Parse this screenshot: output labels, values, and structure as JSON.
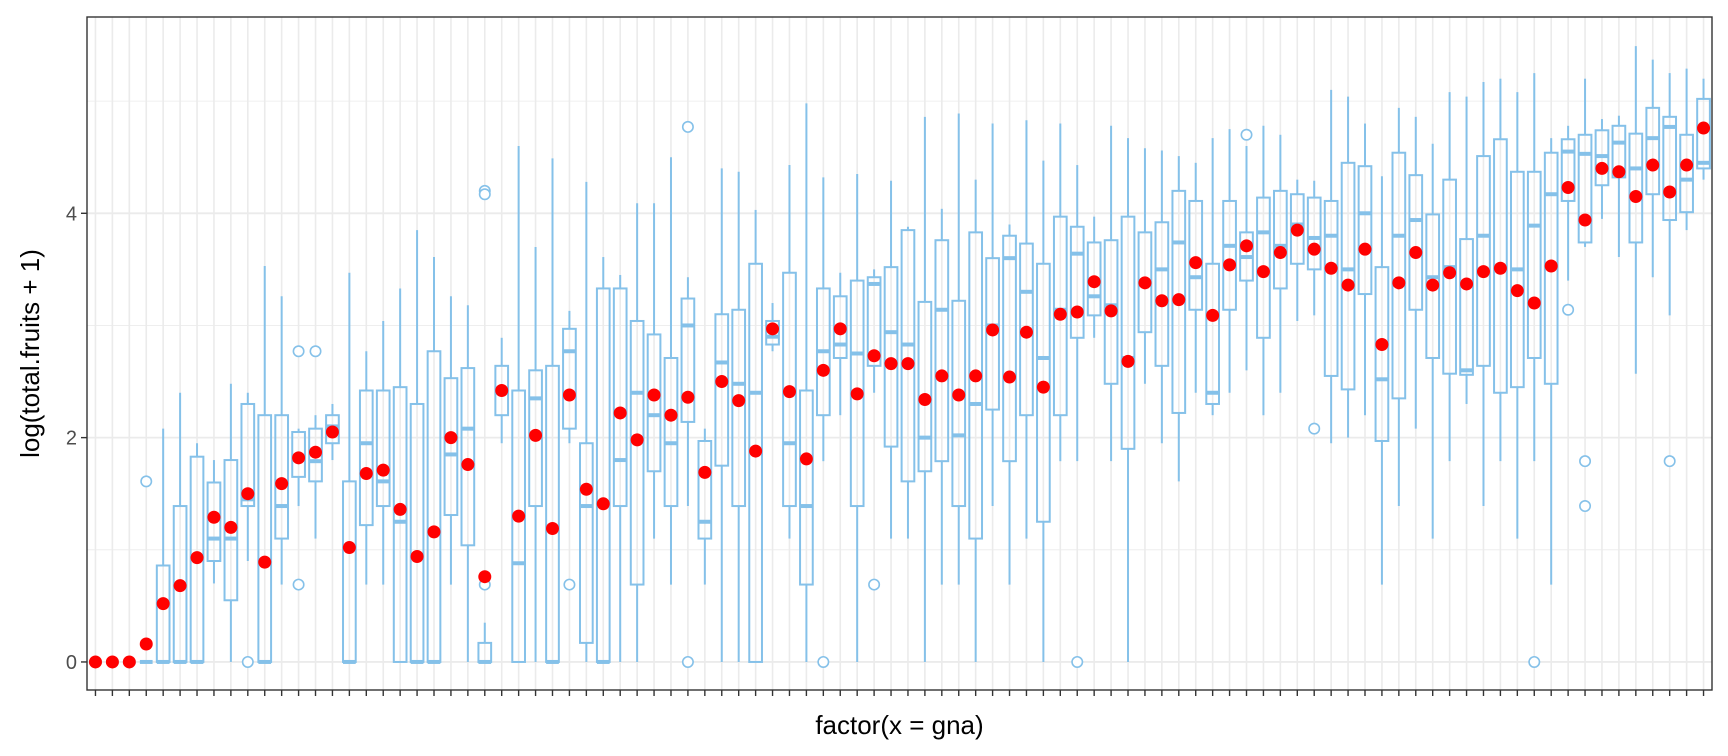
{
  "chart_data": {
    "type": "box",
    "title": "",
    "xlabel": "factor(x = gna)",
    "ylabel": "log(total.fruits + 1)",
    "ylim": [
      -0.25,
      5.75
    ],
    "yticks": [
      0,
      2,
      4
    ],
    "ytick_labels": [
      "0",
      "2",
      "4"
    ],
    "x_tick_labels_shown": false,
    "grid": true,
    "theme": "bw",
    "colors": {
      "box": "#85c1e9",
      "mean": "#ff0000",
      "grid": "#ebebeb",
      "panel_border": "#333333"
    },
    "groups": [
      {
        "q1": 0,
        "median": 0,
        "q3": 0,
        "lo": 0,
        "hi": 0,
        "mean": 0,
        "outliers": []
      },
      {
        "q1": 0,
        "median": 0,
        "q3": 0,
        "lo": 0,
        "hi": 0,
        "mean": 0,
        "outliers": []
      },
      {
        "q1": 0,
        "median": 0,
        "q3": 0,
        "lo": 0,
        "hi": 0,
        "mean": 0,
        "outliers": []
      },
      {
        "q1": 0,
        "median": 0,
        "q3": 0,
        "lo": 0,
        "hi": 0,
        "mean": 0.16,
        "outliers": [
          1.61
        ]
      },
      {
        "q1": 0,
        "median": 0,
        "q3": 0.86,
        "lo": 0,
        "hi": 2.08,
        "mean": 0.52,
        "outliers": []
      },
      {
        "q1": 0,
        "median": 0,
        "q3": 1.39,
        "lo": 0,
        "hi": 2.4,
        "mean": 0.68,
        "outliers": []
      },
      {
        "q1": 0,
        "median": 0,
        "q3": 1.83,
        "lo": 0,
        "hi": 1.95,
        "mean": 0.93,
        "outliers": []
      },
      {
        "q1": 0.9,
        "median": 1.1,
        "q3": 1.6,
        "lo": 0.7,
        "hi": 1.8,
        "mean": 1.29,
        "outliers": []
      },
      {
        "q1": 0.55,
        "median": 1.1,
        "q3": 1.8,
        "lo": 0,
        "hi": 2.48,
        "mean": 1.2,
        "outliers": []
      },
      {
        "q1": 1.39,
        "median": 1.45,
        "q3": 2.3,
        "lo": 0.9,
        "hi": 2.4,
        "mean": 1.5,
        "outliers": [
          0
        ]
      },
      {
        "q1": 0,
        "median": 0,
        "q3": 2.2,
        "lo": 0,
        "hi": 3.53,
        "mean": 0.89,
        "outliers": []
      },
      {
        "q1": 1.1,
        "median": 1.39,
        "q3": 2.2,
        "lo": 0.69,
        "hi": 3.26,
        "mean": 1.59,
        "outliers": []
      },
      {
        "q1": 1.65,
        "median": 1.8,
        "q3": 2.05,
        "lo": 1.39,
        "hi": 2.08,
        "mean": 1.82,
        "outliers": [
          2.77,
          0.69
        ]
      },
      {
        "q1": 1.61,
        "median": 1.79,
        "q3": 2.08,
        "lo": 1.1,
        "hi": 2.2,
        "mean": 1.87,
        "outliers": [
          2.77
        ]
      },
      {
        "q1": 1.95,
        "median": 2.1,
        "q3": 2.2,
        "lo": 1.8,
        "hi": 2.3,
        "mean": 2.05,
        "outliers": []
      },
      {
        "q1": 0,
        "median": 0,
        "q3": 1.61,
        "lo": 0,
        "hi": 3.47,
        "mean": 1.02,
        "outliers": []
      },
      {
        "q1": 1.22,
        "median": 1.95,
        "q3": 2.42,
        "lo": 0.69,
        "hi": 2.77,
        "mean": 1.68,
        "outliers": []
      },
      {
        "q1": 1.39,
        "median": 1.61,
        "q3": 2.42,
        "lo": 0.69,
        "hi": 3.04,
        "mean": 1.71,
        "outliers": []
      },
      {
        "q1": 0,
        "median": 1.25,
        "q3": 2.45,
        "lo": 0,
        "hi": 3.33,
        "mean": 1.36,
        "outliers": []
      },
      {
        "q1": 0,
        "median": 0,
        "q3": 2.3,
        "lo": 0,
        "hi": 3.85,
        "mean": 0.94,
        "outliers": []
      },
      {
        "q1": 0,
        "median": 0,
        "q3": 2.77,
        "lo": 0,
        "hi": 3.61,
        "mean": 1.16,
        "outliers": []
      },
      {
        "q1": 1.31,
        "median": 1.85,
        "q3": 2.53,
        "lo": 0.69,
        "hi": 3.26,
        "mean": 2.0,
        "outliers": []
      },
      {
        "q1": 1.04,
        "median": 2.08,
        "q3": 2.62,
        "lo": 0,
        "hi": 3.18,
        "mean": 1.76,
        "outliers": []
      },
      {
        "q1": 0,
        "median": 0,
        "q3": 0.17,
        "lo": 0,
        "hi": 0.35,
        "mean": 0.76,
        "outliers": [
          4.2,
          4.17,
          0.69
        ]
      },
      {
        "q1": 2.2,
        "median": 2.4,
        "q3": 2.64,
        "lo": 1.95,
        "hi": 2.89,
        "mean": 2.42,
        "outliers": []
      },
      {
        "q1": 0,
        "median": 0.88,
        "q3": 2.42,
        "lo": 0,
        "hi": 4.6,
        "mean": 1.3,
        "outliers": []
      },
      {
        "q1": 1.39,
        "median": 2.35,
        "q3": 2.6,
        "lo": 0,
        "hi": 3.7,
        "mean": 2.02,
        "outliers": []
      },
      {
        "q1": 0,
        "median": 0,
        "q3": 2.64,
        "lo": 0,
        "hi": 4.49,
        "mean": 1.19,
        "outliers": []
      },
      {
        "q1": 2.08,
        "median": 2.77,
        "q3": 2.97,
        "lo": 1.95,
        "hi": 3.13,
        "mean": 2.38,
        "outliers": [
          0.69
        ]
      },
      {
        "q1": 0.17,
        "median": 1.39,
        "q3": 1.95,
        "lo": 0,
        "hi": 4.28,
        "mean": 1.54,
        "outliers": []
      },
      {
        "q1": 0,
        "median": 0,
        "q3": 3.33,
        "lo": 0,
        "hi": 3.61,
        "mean": 1.41,
        "outliers": []
      },
      {
        "q1": 1.39,
        "median": 1.8,
        "q3": 3.33,
        "lo": 0,
        "hi": 3.45,
        "mean": 2.22,
        "outliers": []
      },
      {
        "q1": 0.69,
        "median": 2.4,
        "q3": 3.04,
        "lo": 0,
        "hi": 4.09,
        "mean": 1.98,
        "outliers": []
      },
      {
        "q1": 1.7,
        "median": 2.2,
        "q3": 2.92,
        "lo": 1.1,
        "hi": 4.09,
        "mean": 2.38,
        "outliers": []
      },
      {
        "q1": 1.39,
        "median": 1.95,
        "q3": 2.71,
        "lo": 0.69,
        "hi": 4.5,
        "mean": 2.2,
        "outliers": []
      },
      {
        "q1": 2.14,
        "median": 3.0,
        "q3": 3.24,
        "lo": 1.39,
        "hi": 3.43,
        "mean": 2.36,
        "outliers": [
          0,
          4.77
        ]
      },
      {
        "q1": 1.1,
        "median": 1.25,
        "q3": 1.97,
        "lo": 0.69,
        "hi": 2.08,
        "mean": 1.69,
        "outliers": []
      },
      {
        "q1": 1.75,
        "median": 2.67,
        "q3": 3.1,
        "lo": 0,
        "hi": 4.4,
        "mean": 2.5,
        "outliers": []
      },
      {
        "q1": 1.39,
        "median": 2.48,
        "q3": 3.14,
        "lo": 0,
        "hi": 4.37,
        "mean": 2.33,
        "outliers": []
      },
      {
        "q1": 0,
        "median": 2.4,
        "q3": 3.55,
        "lo": 0,
        "hi": 4.03,
        "mean": 1.88,
        "outliers": []
      },
      {
        "q1": 2.83,
        "median": 2.9,
        "q3": 3.04,
        "lo": 2.77,
        "hi": 3.2,
        "mean": 2.97,
        "outliers": []
      },
      {
        "q1": 1.39,
        "median": 1.95,
        "q3": 3.47,
        "lo": 1.1,
        "hi": 4.43,
        "mean": 2.41,
        "outliers": []
      },
      {
        "q1": 0.69,
        "median": 1.39,
        "q3": 2.42,
        "lo": 0,
        "hi": 4.98,
        "mean": 1.81,
        "outliers": []
      },
      {
        "q1": 2.2,
        "median": 2.77,
        "q3": 3.33,
        "lo": 1.79,
        "hi": 4.32,
        "mean": 2.6,
        "outliers": [
          0
        ]
      },
      {
        "q1": 2.71,
        "median": 2.83,
        "q3": 3.26,
        "lo": 2.2,
        "hi": 3.47,
        "mean": 2.97,
        "outliers": []
      },
      {
        "q1": 1.39,
        "median": 2.75,
        "q3": 3.4,
        "lo": 0,
        "hi": 4.35,
        "mean": 2.39,
        "outliers": []
      },
      {
        "q1": 2.64,
        "median": 3.37,
        "q3": 3.43,
        "lo": 2.4,
        "hi": 3.5,
        "mean": 2.73,
        "outliers": [
          0.69
        ]
      },
      {
        "q1": 1.92,
        "median": 2.94,
        "q3": 3.52,
        "lo": 1.1,
        "hi": 4.29,
        "mean": 2.66,
        "outliers": []
      },
      {
        "q1": 1.61,
        "median": 2.83,
        "q3": 3.85,
        "lo": 1.1,
        "hi": 3.88,
        "mean": 2.66,
        "outliers": []
      },
      {
        "q1": 1.7,
        "median": 2.0,
        "q3": 3.21,
        "lo": 0,
        "hi": 4.86,
        "mean": 2.34,
        "outliers": []
      },
      {
        "q1": 1.79,
        "median": 3.14,
        "q3": 3.76,
        "lo": 0.69,
        "hi": 4.04,
        "mean": 2.55,
        "outliers": []
      },
      {
        "q1": 1.39,
        "median": 2.02,
        "q3": 3.22,
        "lo": 0.69,
        "hi": 4.89,
        "mean": 2.38,
        "outliers": []
      },
      {
        "q1": 1.1,
        "median": 2.3,
        "q3": 3.83,
        "lo": 0,
        "hi": 4.3,
        "mean": 2.55,
        "outliers": []
      },
      {
        "q1": 2.25,
        "median": 3.0,
        "q3": 3.6,
        "lo": 1.39,
        "hi": 4.8,
        "mean": 2.96,
        "outliers": []
      },
      {
        "q1": 1.79,
        "median": 3.6,
        "q3": 3.8,
        "lo": 0.69,
        "hi": 3.9,
        "mean": 2.54,
        "outliers": []
      },
      {
        "q1": 2.2,
        "median": 3.3,
        "q3": 3.73,
        "lo": 1.1,
        "hi": 4.83,
        "mean": 2.94,
        "outliers": []
      },
      {
        "q1": 1.25,
        "median": 2.71,
        "q3": 3.55,
        "lo": 0,
        "hi": 4.47,
        "mean": 2.45,
        "outliers": []
      },
      {
        "q1": 2.2,
        "median": 3.14,
        "q3": 3.97,
        "lo": 1.79,
        "hi": 4.8,
        "mean": 3.1,
        "outliers": []
      },
      {
        "q1": 2.89,
        "median": 3.64,
        "q3": 3.88,
        "lo": 1.79,
        "hi": 4.43,
        "mean": 3.12,
        "outliers": [
          0
        ]
      },
      {
        "q1": 3.09,
        "median": 3.26,
        "q3": 3.74,
        "lo": 2.89,
        "hi": 3.97,
        "mean": 3.39,
        "outliers": []
      },
      {
        "q1": 2.48,
        "median": 3.18,
        "q3": 3.76,
        "lo": 1.79,
        "hi": 4.78,
        "mean": 3.13,
        "outliers": []
      },
      {
        "q1": 1.9,
        "median": 2.71,
        "q3": 3.97,
        "lo": 0,
        "hi": 4.67,
        "mean": 2.68,
        "outliers": []
      },
      {
        "q1": 2.94,
        "median": 3.37,
        "q3": 3.83,
        "lo": 2.48,
        "hi": 4.58,
        "mean": 3.38,
        "outliers": []
      },
      {
        "q1": 2.64,
        "median": 3.5,
        "q3": 3.92,
        "lo": 1.95,
        "hi": 4.56,
        "mean": 3.22,
        "outliers": []
      },
      {
        "q1": 2.22,
        "median": 3.74,
        "q3": 4.2,
        "lo": 1.61,
        "hi": 4.51,
        "mean": 3.23,
        "outliers": []
      },
      {
        "q1": 3.14,
        "median": 3.43,
        "q3": 4.11,
        "lo": 2.4,
        "hi": 4.45,
        "mean": 3.56,
        "outliers": []
      },
      {
        "q1": 2.3,
        "median": 2.4,
        "q3": 3.55,
        "lo": 2.2,
        "hi": 4.67,
        "mean": 3.09,
        "outliers": []
      },
      {
        "q1": 3.14,
        "median": 3.71,
        "q3": 4.11,
        "lo": 2.4,
        "hi": 4.75,
        "mean": 3.54,
        "outliers": []
      },
      {
        "q1": 3.4,
        "median": 3.61,
        "q3": 3.83,
        "lo": 2.6,
        "hi": 4.6,
        "mean": 3.71,
        "outliers": [
          4.7
        ]
      },
      {
        "q1": 2.89,
        "median": 3.83,
        "q3": 4.14,
        "lo": 2.2,
        "hi": 4.78,
        "mean": 3.48,
        "outliers": []
      },
      {
        "q1": 3.33,
        "median": 3.71,
        "q3": 4.2,
        "lo": 2.4,
        "hi": 4.7,
        "mean": 3.65,
        "outliers": []
      },
      {
        "q1": 3.55,
        "median": 3.9,
        "q3": 4.17,
        "lo": 3.04,
        "hi": 4.3,
        "mean": 3.85,
        "outliers": []
      },
      {
        "q1": 3.5,
        "median": 3.78,
        "q3": 4.14,
        "lo": 3.09,
        "hi": 4.29,
        "mean": 3.68,
        "outliers": [
          2.08
        ]
      },
      {
        "q1": 2.55,
        "median": 3.8,
        "q3": 4.11,
        "lo": 1.95,
        "hi": 5.1,
        "mean": 3.51,
        "outliers": []
      },
      {
        "q1": 2.43,
        "median": 3.5,
        "q3": 4.45,
        "lo": 2.0,
        "hi": 5.04,
        "mean": 3.36,
        "outliers": []
      },
      {
        "q1": 3.28,
        "median": 4.0,
        "q3": 4.42,
        "lo": 2.2,
        "hi": 4.8,
        "mean": 3.68,
        "outliers": []
      },
      {
        "q1": 1.97,
        "median": 2.52,
        "q3": 3.52,
        "lo": 0.69,
        "hi": 4.33,
        "mean": 2.83,
        "outliers": []
      },
      {
        "q1": 2.35,
        "median": 3.8,
        "q3": 4.54,
        "lo": 1.39,
        "hi": 4.94,
        "mean": 3.38,
        "outliers": []
      },
      {
        "q1": 3.14,
        "median": 3.94,
        "q3": 4.34,
        "lo": 2.08,
        "hi": 4.86,
        "mean": 3.65,
        "outliers": []
      },
      {
        "q1": 2.71,
        "median": 3.43,
        "q3": 3.99,
        "lo": 1.1,
        "hi": 4.62,
        "mean": 3.36,
        "outliers": []
      },
      {
        "q1": 2.57,
        "median": 3.52,
        "q3": 4.3,
        "lo": 1.79,
        "hi": 5.08,
        "mean": 3.47,
        "outliers": []
      },
      {
        "q1": 2.56,
        "median": 2.6,
        "q3": 3.77,
        "lo": 2.3,
        "hi": 5.04,
        "mean": 3.37,
        "outliers": []
      },
      {
        "q1": 2.64,
        "median": 3.8,
        "q3": 4.51,
        "lo": 1.39,
        "hi": 5.17,
        "mean": 3.48,
        "outliers": []
      },
      {
        "q1": 2.4,
        "median": 3.5,
        "q3": 4.66,
        "lo": 1.79,
        "hi": 5.2,
        "mean": 3.51,
        "outliers": []
      },
      {
        "q1": 2.45,
        "median": 3.5,
        "q3": 4.37,
        "lo": 1.1,
        "hi": 5.08,
        "mean": 3.31,
        "outliers": []
      },
      {
        "q1": 2.71,
        "median": 3.89,
        "q3": 4.37,
        "lo": 1.79,
        "hi": 5.25,
        "mean": 3.2,
        "outliers": [
          0
        ]
      },
      {
        "q1": 2.48,
        "median": 4.17,
        "q3": 4.54,
        "lo": 0.69,
        "hi": 4.67,
        "mean": 3.53,
        "outliers": []
      },
      {
        "q1": 4.11,
        "median": 4.55,
        "q3": 4.66,
        "lo": 3.4,
        "hi": 4.78,
        "mean": 4.23,
        "outliers": [
          3.14
        ]
      },
      {
        "q1": 3.74,
        "median": 4.53,
        "q3": 4.7,
        "lo": 3.7,
        "hi": 5.2,
        "mean": 3.94,
        "outliers": [
          1.79,
          1.39
        ]
      },
      {
        "q1": 4.25,
        "median": 4.51,
        "q3": 4.74,
        "lo": 3.95,
        "hi": 4.84,
        "mean": 4.4,
        "outliers": []
      },
      {
        "q1": 4.32,
        "median": 4.63,
        "q3": 4.78,
        "lo": 3.61,
        "hi": 4.87,
        "mean": 4.37,
        "outliers": []
      },
      {
        "q1": 3.74,
        "median": 4.4,
        "q3": 4.71,
        "lo": 2.57,
        "hi": 5.49,
        "mean": 4.15,
        "outliers": []
      },
      {
        "q1": 4.17,
        "median": 4.67,
        "q3": 4.94,
        "lo": 3.43,
        "hi": 5.37,
        "mean": 4.43,
        "outliers": []
      },
      {
        "q1": 3.94,
        "median": 4.77,
        "q3": 4.86,
        "lo": 3.09,
        "hi": 5.25,
        "mean": 4.19,
        "outliers": [
          1.79
        ]
      },
      {
        "q1": 4.01,
        "median": 4.3,
        "q3": 4.7,
        "lo": 3.85,
        "hi": 5.29,
        "mean": 4.43,
        "outliers": []
      },
      {
        "q1": 4.4,
        "median": 4.45,
        "q3": 5.02,
        "lo": 4.3,
        "hi": 5.2,
        "mean": 4.76,
        "outliers": []
      }
    ]
  }
}
